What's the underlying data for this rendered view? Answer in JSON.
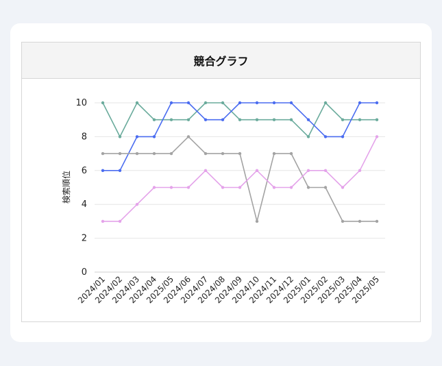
{
  "header": {
    "title": "競合グラフ"
  },
  "chart_data": {
    "type": "line",
    "title": "競合グラフ",
    "xlabel": "",
    "ylabel": "検索順位",
    "ylim": [
      0,
      10
    ],
    "yticks": [
      0,
      2,
      4,
      6,
      8,
      10
    ],
    "grid": true,
    "legend": "none",
    "categories": [
      "2024/01",
      "2024/02",
      "2024/03",
      "2024/04",
      "2025/05",
      "2024/06",
      "2024/07",
      "2024/08",
      "2024/09",
      "2024/10",
      "2024/11",
      "2024/12",
      "2025/01",
      "2025/02",
      "2025/03",
      "2025/04",
      "2025/05"
    ],
    "series": [
      {
        "color": "#6aab9c",
        "values": [
          10,
          8,
          10,
          9,
          9,
          9,
          10,
          10,
          9,
          9,
          9,
          9,
          8,
          10,
          9,
          9,
          9
        ]
      },
      {
        "color": "#4a6cf0",
        "values": [
          6,
          6,
          8,
          8,
          10,
          10,
          9,
          9,
          10,
          10,
          10,
          10,
          9,
          8,
          8,
          10,
          10
        ]
      },
      {
        "color": "#a3a3a3",
        "values": [
          7,
          7,
          7,
          7,
          7,
          8,
          7,
          7,
          7,
          3,
          7,
          7,
          5,
          5,
          3,
          3,
          3
        ]
      },
      {
        "color": "#e4a3ea",
        "values": [
          3,
          3,
          4,
          5,
          5,
          5,
          6,
          5,
          5,
          6,
          5,
          5,
          6,
          6,
          5,
          6,
          8
        ]
      }
    ]
  }
}
